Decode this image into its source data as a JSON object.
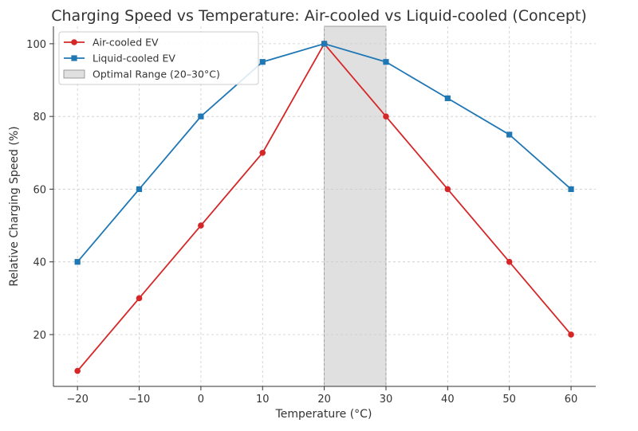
{
  "chart_data": {
    "type": "line",
    "title": "Charging Speed vs Temperature: Air-cooled vs Liquid-cooled (Concept)",
    "xlabel": "Temperature (°C)",
    "ylabel": "Relative Charging Speed (%)",
    "x": [
      -20,
      -10,
      0,
      10,
      20,
      30,
      40,
      50,
      60
    ],
    "series": [
      {
        "name": "Air-cooled EV",
        "values": [
          10,
          30,
          50,
          70,
          100,
          80,
          60,
          40,
          20
        ],
        "color": "#d62728",
        "marker": "circle"
      },
      {
        "name": "Liquid-cooled EV",
        "values": [
          40,
          60,
          80,
          95,
          100,
          95,
          85,
          75,
          60
        ],
        "color": "#1f77b4",
        "marker": "square"
      }
    ],
    "shaded_region": {
      "name": "Optimal Range (20–30°C)",
      "x": [
        20,
        30
      ],
      "color": "#e0e0e0"
    },
    "xticks": [
      -20,
      -10,
      0,
      10,
      20,
      30,
      40,
      50,
      60
    ],
    "xtick_labels": [
      "−20",
      "−10",
      "0",
      "10",
      "20",
      "30",
      "40",
      "50",
      "60"
    ],
    "yticks": [
      20,
      40,
      60,
      80,
      100
    ],
    "xlim": [
      -23.9,
      64
    ],
    "ylim": [
      5.75,
      104.8
    ],
    "grid": true,
    "legend": "top-left"
  }
}
